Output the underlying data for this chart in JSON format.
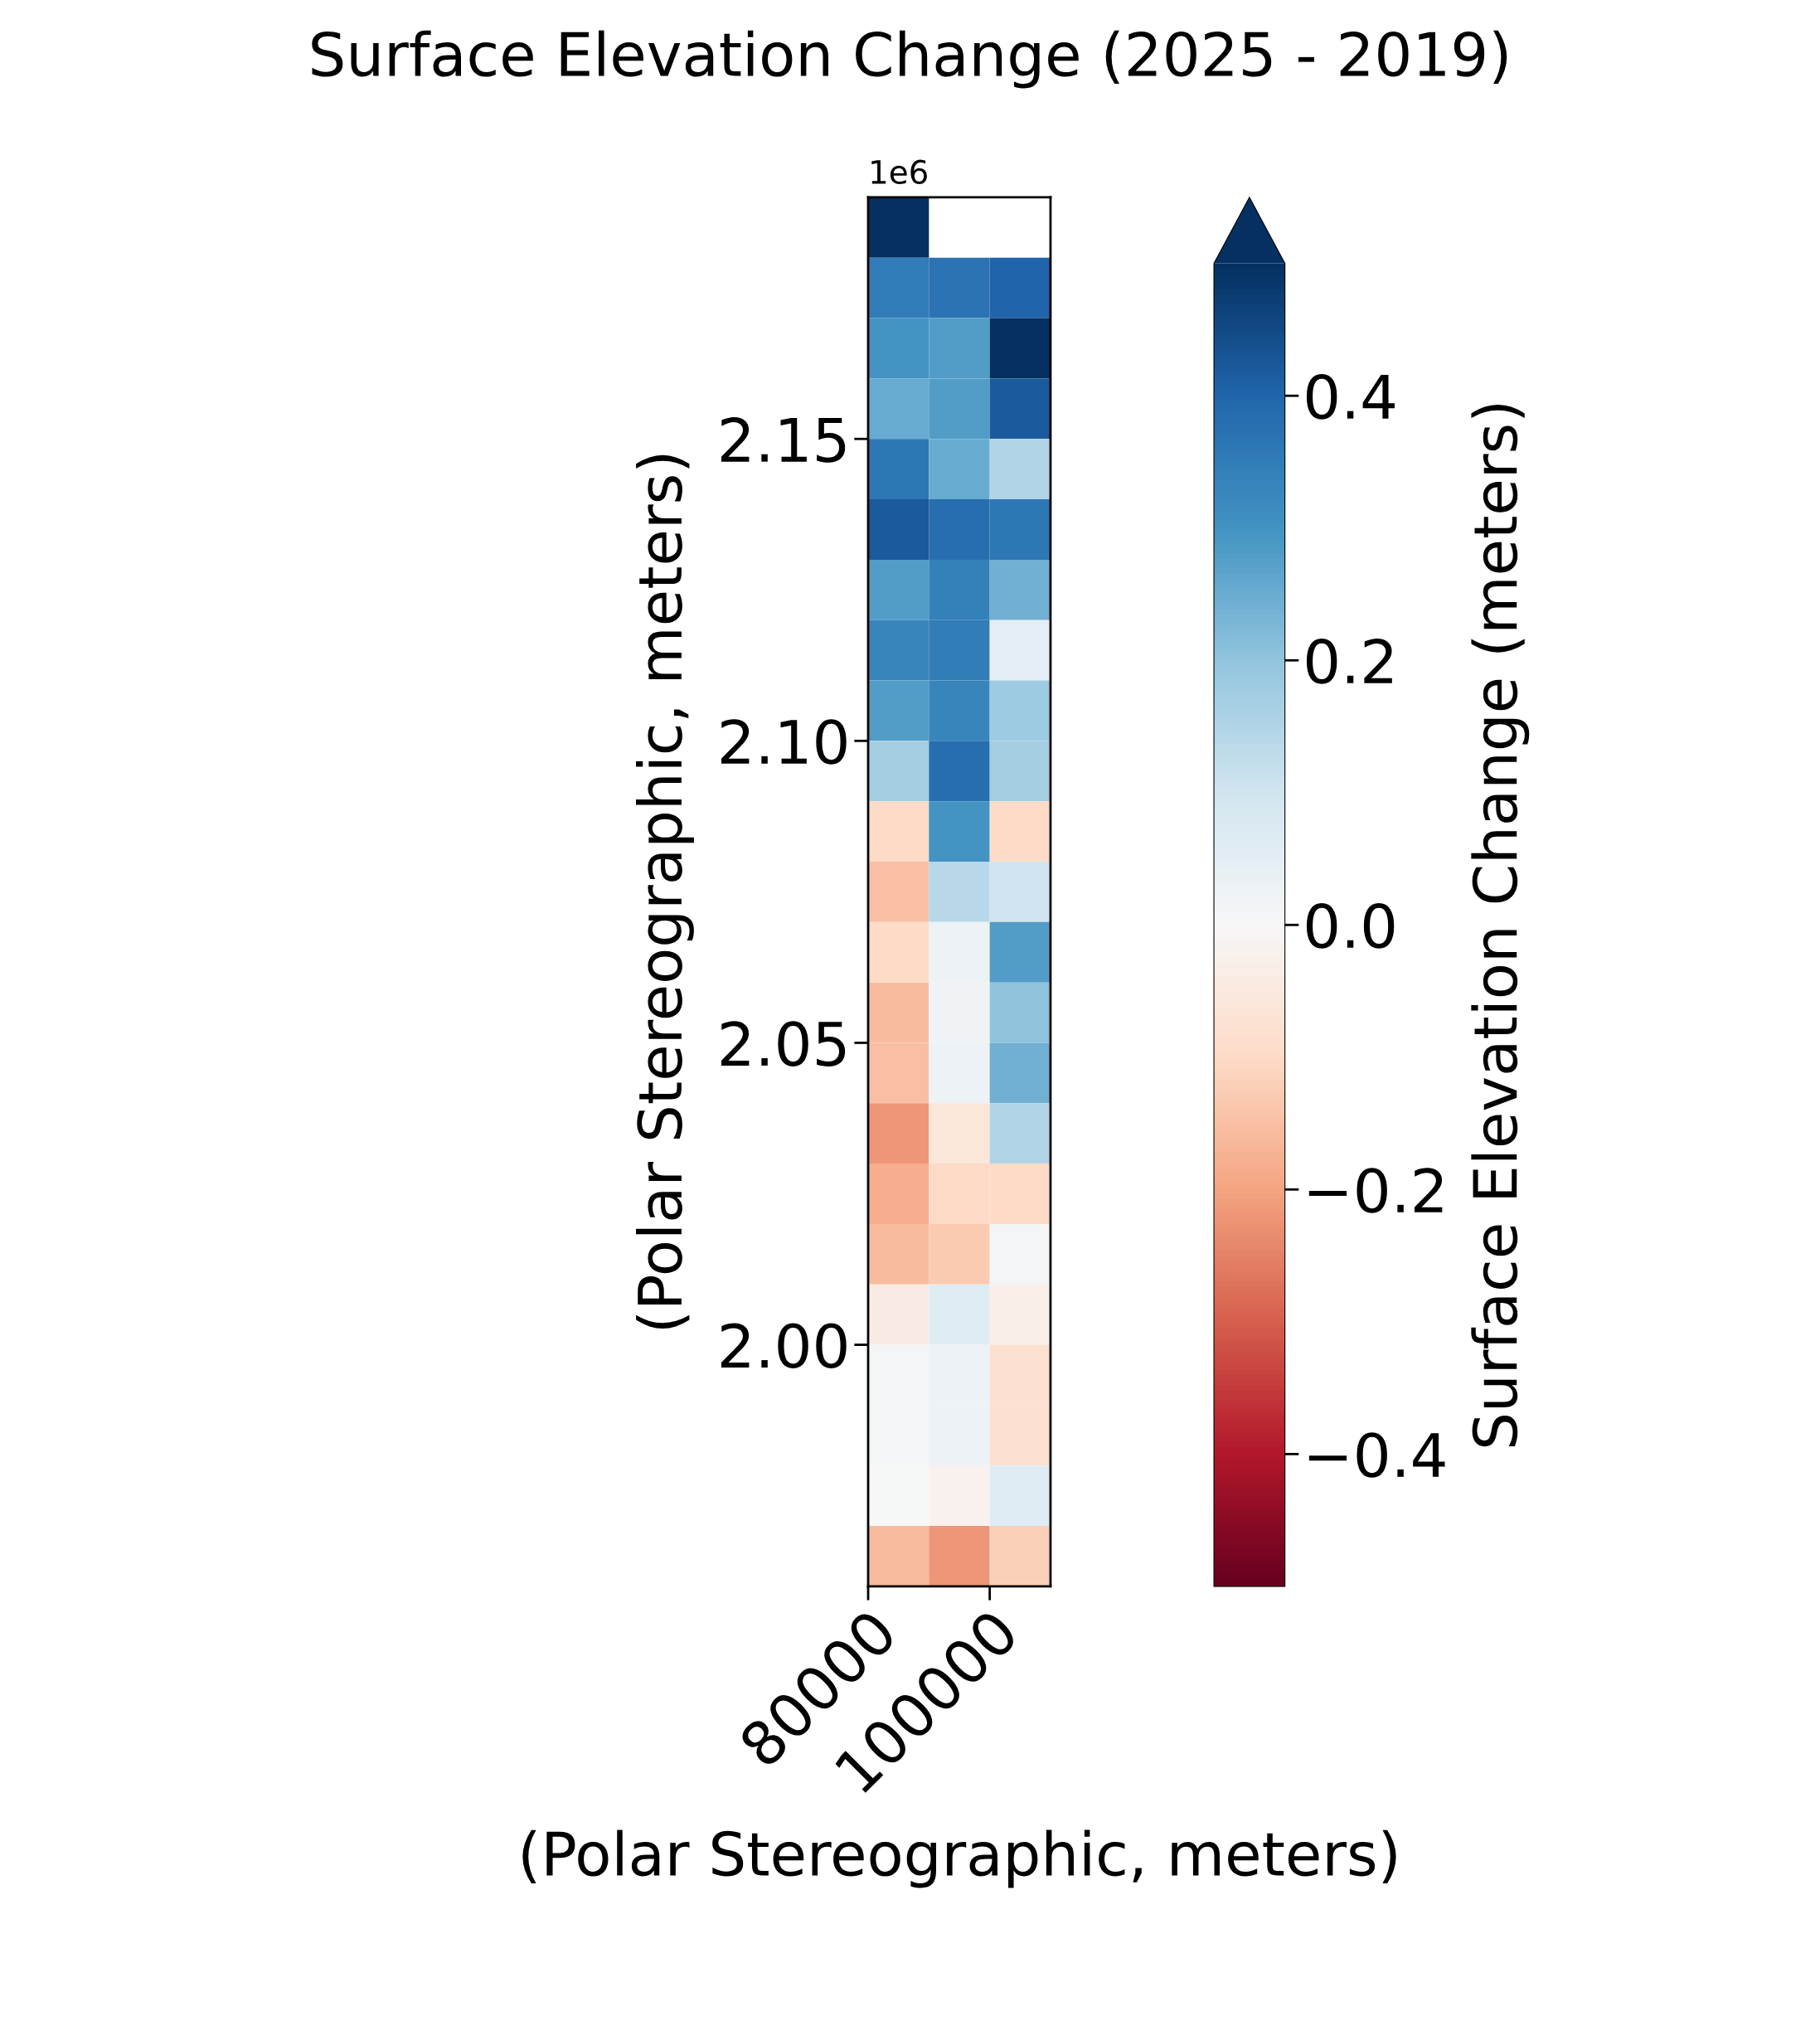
{
  "chart_data": {
    "type": "heatmap",
    "title": "Surface Elevation Change (2025 - 2019)",
    "xlabel": "(Polar Stereographic, meters)",
    "ylabel": "(Polar Stereographic, meters)",
    "clabel": "Surface Elevation Change (meters)",
    "xlim": [
      80000,
      110000
    ],
    "ylim": [
      1.96,
      2.19
    ],
    "xticks": [
      80000,
      100000
    ],
    "yticks": [
      {
        "value": 2.0,
        "label": "2.00"
      },
      2.05,
      {
        "value": 2.1,
        "label": "2.10"
      },
      2.15
    ],
    "annotations": [
      "1e6"
    ],
    "clim": [
      -0.5,
      0.5
    ],
    "cticks": [
      -0.4,
      -0.2,
      {
        "value": 0,
        "label": "0.0"
      },
      0.2,
      0.4
    ],
    "cells": [
      [
        0.5,
        null,
        null
      ],
      [
        0.35,
        0.37,
        0.4
      ],
      [
        0.3,
        0.28,
        0.5
      ],
      [
        0.25,
        0.28,
        0.42
      ],
      [
        0.36,
        0.25,
        0.15
      ],
      [
        0.42,
        0.38,
        0.36
      ],
      [
        0.28,
        0.34,
        0.24
      ],
      [
        0.33,
        0.35,
        0.05
      ],
      [
        0.28,
        0.33,
        0.18
      ],
      [
        0.17,
        0.38,
        0.17
      ],
      [
        -0.1,
        0.3,
        -0.1
      ],
      [
        -0.15,
        0.14,
        0.1
      ],
      [
        -0.1,
        0.03,
        0.28
      ],
      [
        -0.16,
        0.02,
        0.2
      ],
      [
        -0.15,
        0.03,
        0.24
      ],
      [
        -0.22,
        -0.06,
        0.15
      ],
      [
        -0.18,
        -0.1,
        -0.1
      ],
      [
        -0.16,
        -0.13,
        0.01
      ],
      [
        -0.04,
        0.06,
        -0.03
      ],
      [
        0.01,
        0.03,
        -0.08
      ],
      [
        0.01,
        0.03,
        -0.08
      ],
      [
        0.0,
        -0.02,
        0.06
      ],
      [
        -0.16,
        -0.22,
        -0.12
      ]
    ],
    "grid": false
  }
}
